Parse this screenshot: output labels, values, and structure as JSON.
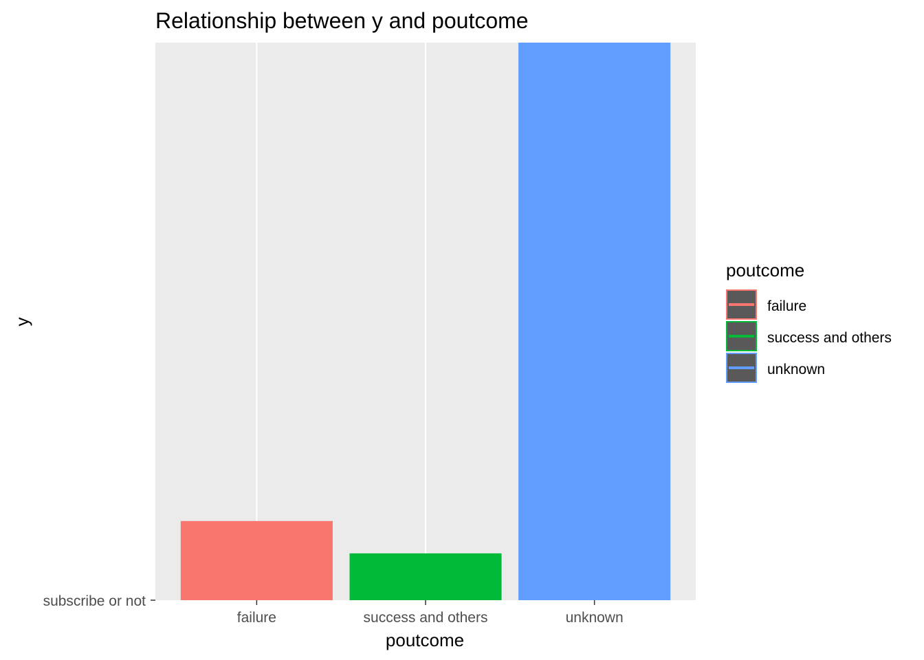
{
  "chart_data": {
    "type": "bar",
    "title": "Relationship between y and poutcome",
    "xlabel": "poutcome",
    "ylabel": "y",
    "categories": [
      "failure",
      "success and others",
      "unknown"
    ],
    "values": [
      0.142,
      0.084,
      1.0
    ],
    "y_tick_labels": [
      "subscribe or not"
    ],
    "ylim": [
      0,
      1.0
    ],
    "grid": true,
    "legend": {
      "title": "poutcome",
      "position": "right",
      "entries": [
        "failure",
        "success and others",
        "unknown"
      ]
    },
    "colors": [
      "#F8766D",
      "#00BA38",
      "#619CFF"
    ],
    "panel_background": "#EBEBEB",
    "grid_color": "#FFFFFF"
  }
}
